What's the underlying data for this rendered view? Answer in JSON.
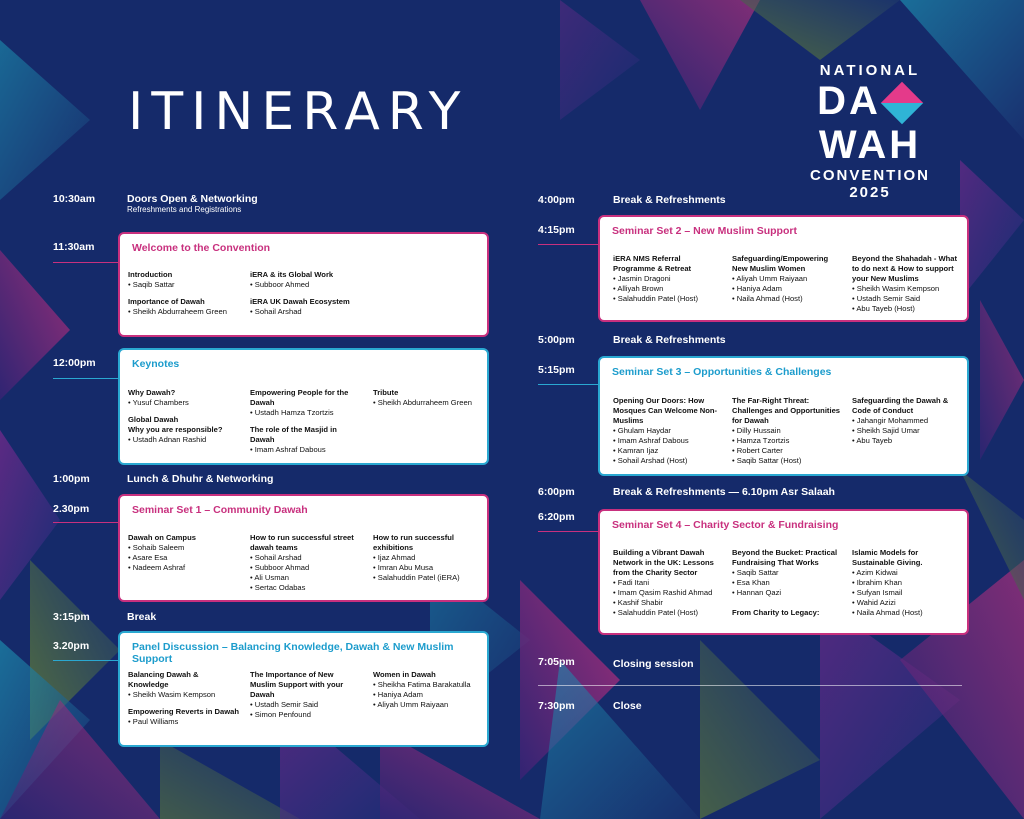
{
  "header": {
    "title": "ITINERARY",
    "logo": {
      "line1": "NATIONAL",
      "word_left": "DA",
      "word_right": "WAH",
      "line3": "CONVENTION",
      "year": "2025"
    }
  },
  "left": {
    "doors": {
      "time": "10:30am",
      "title": "Doors Open & Networking",
      "sub": "Refreshments and Registrations"
    },
    "welcome": {
      "time": "11:30am",
      "title": "Welcome to the Convention",
      "cols": [
        [
          {
            "h": "Introduction",
            "items": [
              "Saqib Sattar"
            ]
          },
          {
            "h": "Importance of Dawah",
            "items": [
              "Sheikh Abdurraheem Green"
            ]
          }
        ],
        [
          {
            "h": "iERA & its Global Work",
            "items": [
              "Subboor Ahmed"
            ]
          },
          {
            "h": "iERA UK Dawah Ecosystem",
            "items": [
              "Sohail Arshad"
            ]
          }
        ]
      ]
    },
    "keynotes": {
      "time": "12:00pm",
      "title": "Keynotes",
      "cols": [
        [
          {
            "h": "Why Dawah?",
            "items": [
              "Yusuf Chambers"
            ]
          },
          {
            "h": "Global Dawah\nWhy you are responsible?",
            "items": [
              "Ustadh Adnan Rashid"
            ]
          }
        ],
        [
          {
            "h": "Empowering People for the Dawah",
            "items": [
              "Ustadh Hamza Tzortzis"
            ]
          },
          {
            "h": "The role of the Masjid in Dawah",
            "items": [
              "Imam Ashraf Dabous"
            ]
          }
        ],
        [
          {
            "h": "Tribute",
            "items": [
              "Sheikh Abdurraheem Green"
            ]
          }
        ]
      ]
    },
    "lunch": {
      "time": "1:00pm",
      "title": "Lunch & Dhuhr & Networking"
    },
    "seminar1": {
      "time": "2.30pm",
      "title": "Seminar Set 1 – Community Dawah",
      "cols": [
        [
          {
            "h": "Dawah on Campus",
            "items": [
              "Sohaib Saleem",
              "Asare Esa",
              "Nadeem Ashraf"
            ]
          }
        ],
        [
          {
            "h": "How to run successful street dawah teams",
            "items": [
              "Sohail Arshad",
              "Subboor Ahmad",
              "Ali Usman",
              "Sertac Odabas"
            ]
          }
        ],
        [
          {
            "h": "How to run successful exhibitions",
            "items": [
              "Ijaz Ahmad",
              "Imran Abu Musa",
              "Salahuddin Patel (iERA)"
            ]
          }
        ]
      ]
    },
    "break1": {
      "time": "3:15pm",
      "title": "Break"
    },
    "panel": {
      "time": "3.20pm",
      "title": "Panel Discussion – Balancing Knowledge, Dawah & New Muslim Support",
      "cols": [
        [
          {
            "h": "Balancing Dawah & Knowledge",
            "items": [
              "Sheikh Wasim Kempson"
            ]
          },
          {
            "h": "Empowering Reverts in Dawah",
            "items": [
              "Paul Williams"
            ]
          }
        ],
        [
          {
            "h": "The Importance of New Muslim Support with your Dawah",
            "items": [
              "Ustadh Semir Said",
              "Simon Penfound"
            ]
          }
        ],
        [
          {
            "h": "Women in Dawah",
            "items": [
              "Sheikha Fatima Barakatulla",
              "Haniya Adam",
              "Aliyah Umm Raiyaan"
            ]
          }
        ]
      ]
    }
  },
  "right": {
    "break4": {
      "time": "4:00pm",
      "title": "Break & Refreshments"
    },
    "seminar2": {
      "time": "4:15pm",
      "title": "Seminar Set 2 – New Muslim Support",
      "cols": [
        [
          {
            "h": "iERA NMS Referral Programme & Retreat",
            "items": [
              "Jasmin Dragoni",
              "Alliyah Brown",
              "Salahuddin Patel (Host)"
            ]
          }
        ],
        [
          {
            "h": "Safeguarding/Empowering New Muslim Women",
            "items": [
              "Aliyah Umm Raiyaan",
              "Haniya Adam",
              "Naila Ahmad (Host)"
            ]
          }
        ],
        [
          {
            "h": "Beyond the Shahadah - What to do next & How to support your New Muslims",
            "items": [
              "Sheikh Wasim Kempson",
              "Ustadh Semir Said",
              "Abu Tayeb (Host)"
            ]
          }
        ]
      ]
    },
    "break5": {
      "time": "5:00pm",
      "title": "Break & Refreshments"
    },
    "seminar3": {
      "time": "5:15pm",
      "title": "Seminar Set 3 – Opportunities & Challenges",
      "cols": [
        [
          {
            "h": "Opening Our Doors: How Mosques Can Welcome Non-Muslims",
            "items": [
              "Ghulam Haydar",
              "Imam Ashraf Dabous",
              "Kamran Ijaz",
              "Sohail Arshad (Host)"
            ]
          }
        ],
        [
          {
            "h": "The Far-Right Threat: Challenges and Opportunities for Dawah",
            "items": [
              "Dilly Hussain",
              "Hamza Tzortzis",
              "Robert Carter",
              "Saqib Sattar (Host)"
            ]
          }
        ],
        [
          {
            "h": "Safeguarding the Dawah & Code of Conduct",
            "items": [
              "Jahangir Mohammed",
              "Sheikh Sajid Umar",
              "Abu Tayeb"
            ]
          }
        ]
      ]
    },
    "break6": {
      "time": "6:00pm",
      "title": "Break & Refreshments — 6.10pm Asr Salaah"
    },
    "seminar4": {
      "time": "6:20pm",
      "title": "Seminar Set 4 – Charity Sector & Fundraising",
      "cols": [
        [
          {
            "h": "Building a Vibrant Dawah Network in the UK: Lessons from the Charity Sector",
            "items": [
              "Fadi Itani",
              "Imam Qasim Rashid Ahmad",
              "Kashif Shabir",
              "Salahuddin Patel (Host)"
            ]
          }
        ],
        [
          {
            "h": "Beyond the Bucket: Practical Fundraising That Works",
            "items": [
              "Saqib Sattar",
              "Esa Khan",
              "Hannan Qazi"
            ]
          },
          {
            "h": "From Charity to Legacy:",
            "items": []
          }
        ],
        [
          {
            "h": "Islamic Models for Sustainable Giving.",
            "items": [
              "Azim Kidwai",
              "Ibrahim Khan",
              "Sufyan Ismail",
              "Wahid Azizi",
              "Naila Ahmad (Host)"
            ]
          }
        ]
      ]
    },
    "closing": {
      "time": "7:05pm",
      "title": "Closing session"
    },
    "close": {
      "time": "7:30pm",
      "title": "Close"
    }
  },
  "colors": {
    "pink": "#c8307e",
    "blue": "#2aa8d1",
    "navy": "#142a6b"
  }
}
